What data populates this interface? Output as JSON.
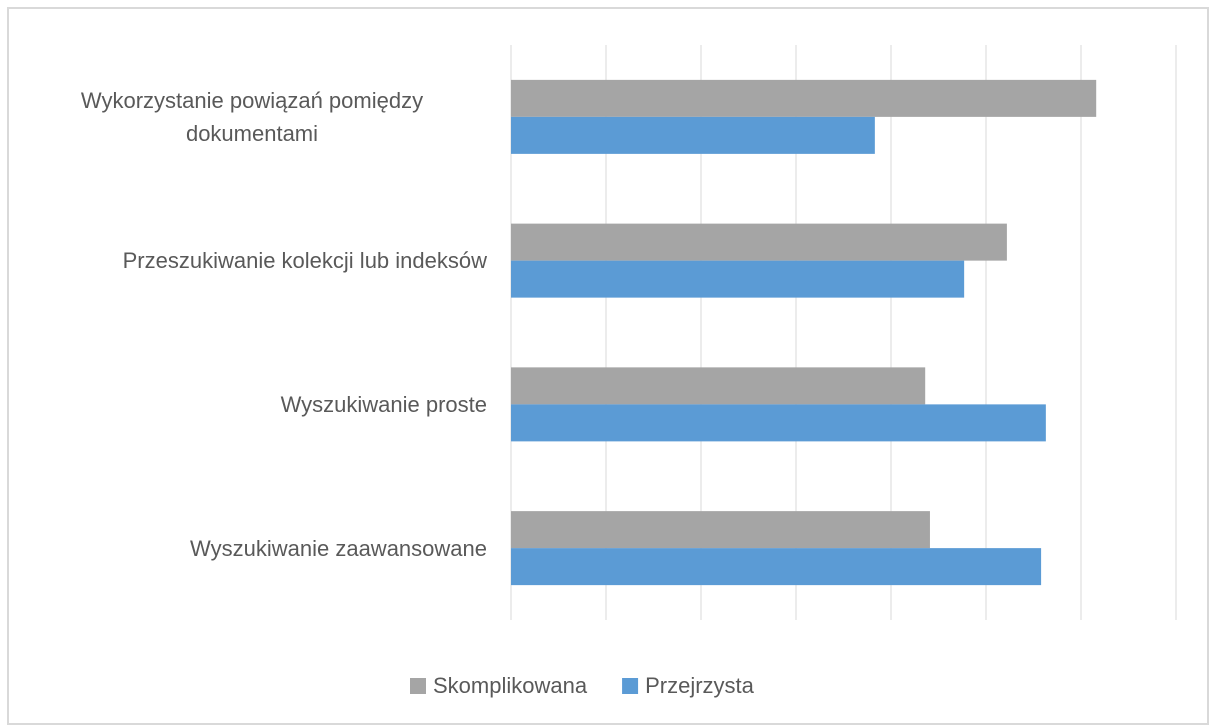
{
  "chart_data": {
    "type": "hbar",
    "categories": [
      "Wykorzystanie powiązań pomiędzy dokumentami",
      "Przeszukiwanie kolekcji lub indeksów",
      "Wyszukiwanie proste",
      "Wyszukiwanie zaawansowane"
    ],
    "series": [
      {
        "name": "Skomplikowana",
        "color": "#a5a5a5",
        "values": [
          6.16,
          5.22,
          4.36,
          4.41
        ]
      },
      {
        "name": "Przejrzysta",
        "color": "#5b9bd5",
        "values": [
          3.83,
          4.77,
          5.63,
          5.58
        ]
      }
    ],
    "xlim": [
      0,
      7
    ],
    "xticks": [
      0,
      1,
      2,
      3,
      4,
      5,
      6,
      7
    ],
    "grid": true,
    "legend": "bottom"
  }
}
